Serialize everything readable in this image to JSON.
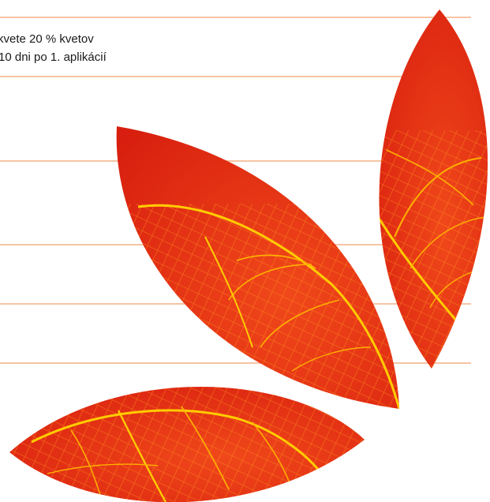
{
  "text": {
    "line1": "kvete 20 % kvetov",
    "line2": "10 dni po 1. aplikácií"
  },
  "colors": {
    "leaf": "#e02a12",
    "vein": "#ffcc00",
    "rule": "#f6c4a4",
    "text": "#1a1a1a"
  }
}
